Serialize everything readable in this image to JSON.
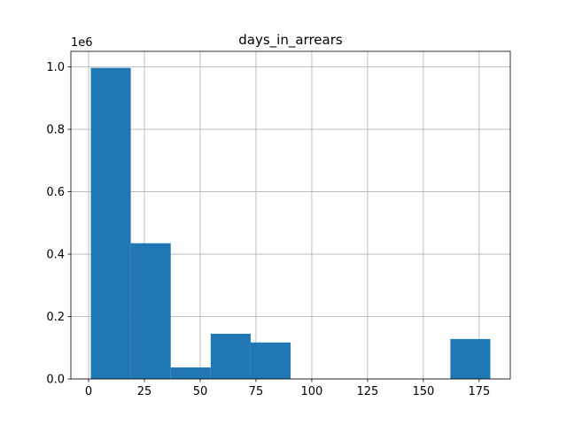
{
  "chart_data": {
    "type": "bar",
    "title": "days_in_arrears",
    "xlabel": "",
    "ylabel": "",
    "y_offset_label": "1e6",
    "xlim": [
      -7.95,
      188.95
    ],
    "ylim": [
      0,
      1.05
    ],
    "grid": true,
    "bar_color": "#1f77b4",
    "bins": [
      {
        "x0": 1.0,
        "x1": 18.9,
        "value": 0.997
      },
      {
        "x0": 18.9,
        "x1": 36.8,
        "value": 0.435
      },
      {
        "x0": 36.8,
        "x1": 54.7,
        "value": 0.037
      },
      {
        "x0": 54.7,
        "x1": 72.6,
        "value": 0.145
      },
      {
        "x0": 72.6,
        "x1": 90.5,
        "value": 0.117
      },
      {
        "x0": 90.5,
        "x1": 108.4,
        "value": 0.0
      },
      {
        "x0": 108.4,
        "x1": 126.3,
        "value": 0.0
      },
      {
        "x0": 126.3,
        "x1": 144.2,
        "value": 0.0
      },
      {
        "x0": 144.2,
        "x1": 162.1,
        "value": 0.0
      },
      {
        "x0": 162.1,
        "x1": 180.0,
        "value": 0.128
      }
    ],
    "x_ticks": [
      {
        "value": 0,
        "label": "0"
      },
      {
        "value": 25,
        "label": "25"
      },
      {
        "value": 50,
        "label": "50"
      },
      {
        "value": 75,
        "label": "75"
      },
      {
        "value": 100,
        "label": "100"
      },
      {
        "value": 125,
        "label": "125"
      },
      {
        "value": 150,
        "label": "150"
      },
      {
        "value": 175,
        "label": "175"
      }
    ],
    "y_ticks": [
      {
        "value": 0.0,
        "label": "0.0"
      },
      {
        "value": 0.2,
        "label": "0.2"
      },
      {
        "value": 0.4,
        "label": "0.4"
      },
      {
        "value": 0.6,
        "label": "0.6"
      },
      {
        "value": 0.8,
        "label": "0.8"
      },
      {
        "value": 1.0,
        "label": "1.0"
      }
    ]
  }
}
